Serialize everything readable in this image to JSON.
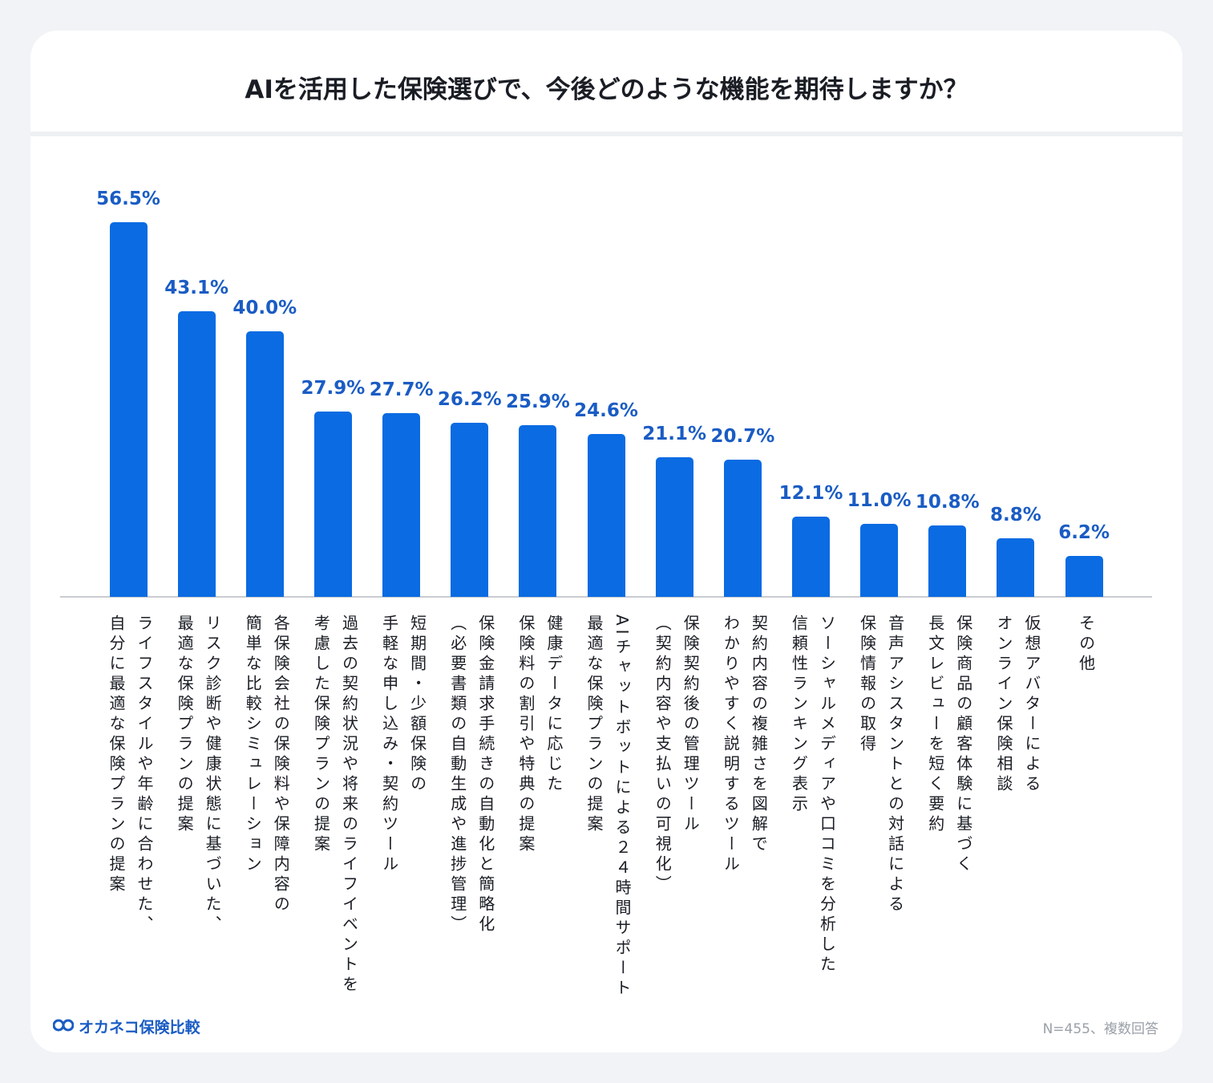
{
  "chart_data": {
    "type": "bar",
    "title": "AIを活用した保険選びで、今後どのような機能を期待しますか？",
    "categories": [
      "ライフスタイルや年齢に合わせた、\n自分に最適な保険プランの提案",
      "リスク診断や健康状態に基づいた、\n最適な保険プランの提案",
      "各保険会社の保険料や保障内容の\n簡単な比較シミュレーション",
      "過去の契約状況や将来のライフイベントを\n考慮した保険プランの提案",
      "短期間・少額保険の\n手軽な申し込み・契約ツール",
      "保険金請求手続きの自動化と簡略化\n（必要書類の自動生成や進捗管理）",
      "健康データに応じた\n保険料の割引や特典の提案",
      "AIチャットボットによる２４時間サポート\n最適な保険プランの提案",
      "保険契約後の管理ツール\n（契約内容や支払いの可視化）",
      "契約内容の複雑さを図解で\nわかりやすく説明するツール",
      "ソーシャルメディアや口コミを分析した\n信頼性ランキング表示",
      "音声アシスタントとの対話による\n保険情報の取得",
      "保険商品の顧客体験に基づく\n長文レビューを短く要約",
      "仮想アバターによる\nオンライン保険相談",
      "その他"
    ],
    "values": [
      56.5,
      43.1,
      40.0,
      27.9,
      27.7,
      26.2,
      25.9,
      24.6,
      21.1,
      20.7,
      12.1,
      11.0,
      10.8,
      8.8,
      6.2
    ],
    "value_labels": [
      "56.5%",
      "43.1%",
      "40.0%",
      "27.9%",
      "27.7%",
      "26.2%",
      "25.9%",
      "24.6%",
      "21.1%",
      "20.7%",
      "12.1%",
      "11.0%",
      "10.8%",
      "8.8%",
      "6.2%"
    ],
    "color": "#0a6be2",
    "label_color": "#1a5cc4",
    "logo": "オカネコ保険比較",
    "note": "N=455、複数回答"
  }
}
